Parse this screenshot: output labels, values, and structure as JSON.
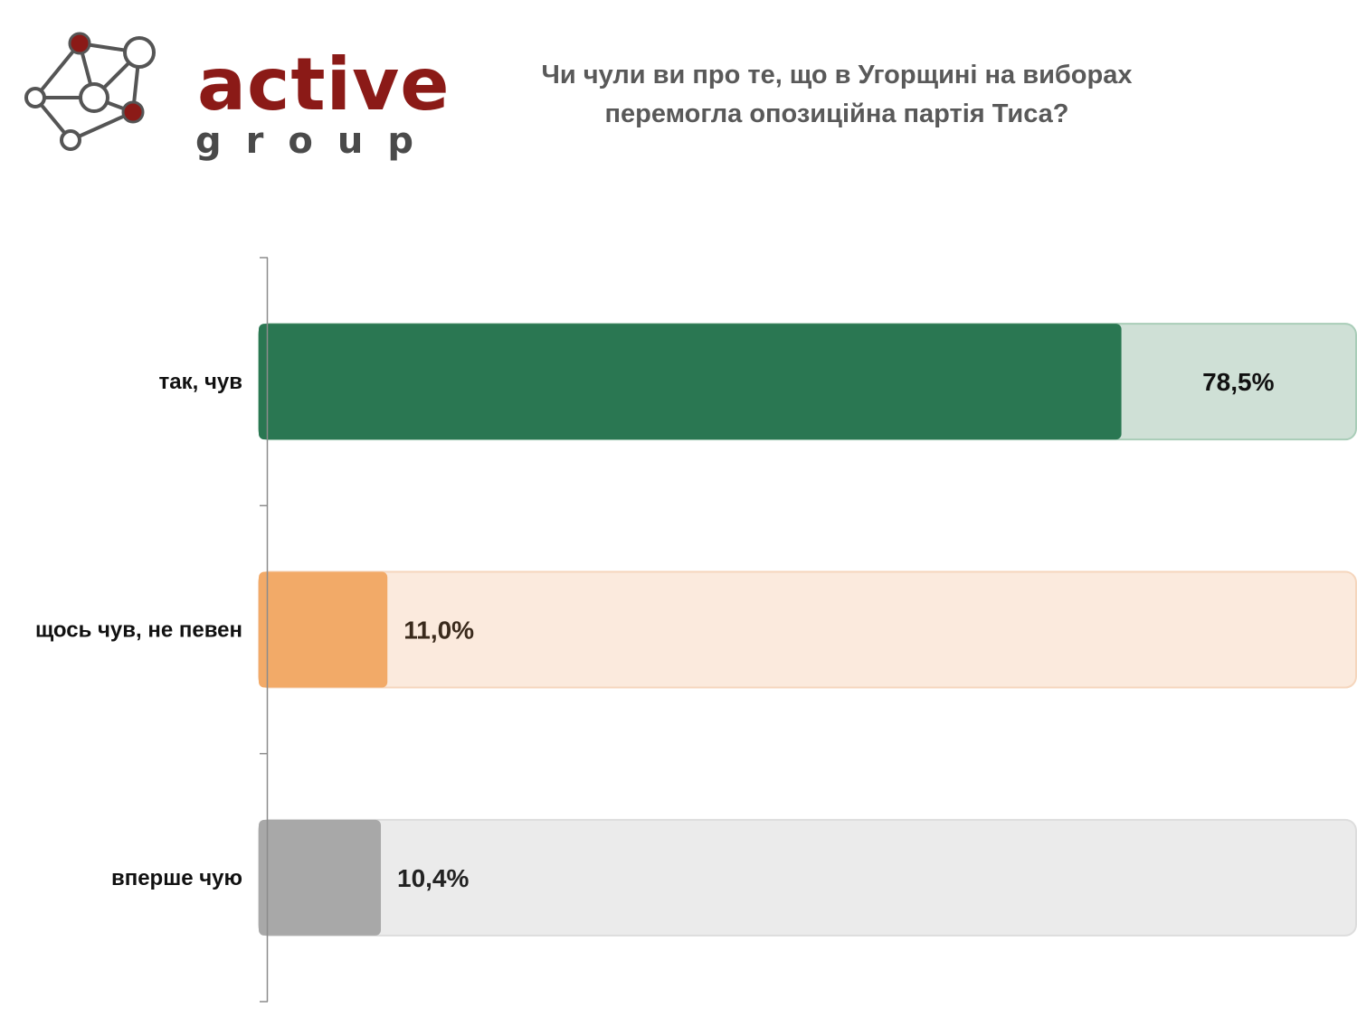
{
  "logo": {
    "word_primary": "active",
    "word_secondary": "group",
    "colors": {
      "dark_red": "#8b1a17",
      "gray": "#4a4a4a"
    }
  },
  "chart_data": {
    "type": "bar",
    "orientation": "horizontal",
    "title": "Чи чули ви про те, що в Угорщині на виборах перемогла опозиційна партія Тиса?",
    "categories": [
      "так, чув",
      "щось чув, не певен",
      "вперше чую"
    ],
    "values": [
      78.5,
      11.0,
      10.4
    ],
    "value_labels": [
      "78,5%",
      "11,0%",
      "10,4%"
    ],
    "xlim": [
      0,
      100
    ],
    "unit": "%",
    "grid": false,
    "legend": "none",
    "colors": [
      {
        "bar": "#2a7752",
        "track": "#cfe0d6",
        "track_border": "#a9cdb8",
        "label": "#111111"
      },
      {
        "bar": "#f2aa68",
        "track": "#fbeadd",
        "track_border": "#f5d6bd",
        "label": "#3a2a1c"
      },
      {
        "bar": "#a8a8a8",
        "track": "#ebebeb",
        "track_border": "#dddddd",
        "label": "#222222"
      }
    ]
  }
}
